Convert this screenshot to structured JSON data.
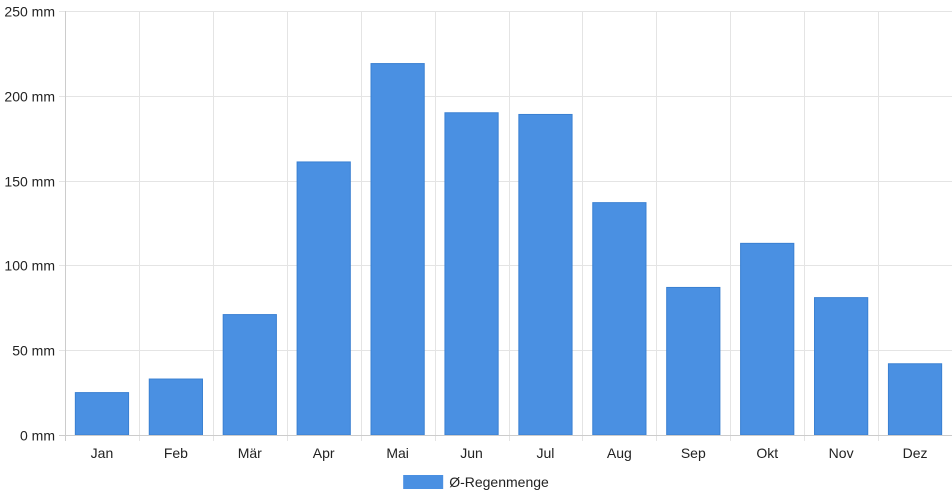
{
  "chart_data": {
    "type": "bar",
    "categories": [
      "Jan",
      "Feb",
      "Mär",
      "Apr",
      "Mai",
      "Jun",
      "Jul",
      "Aug",
      "Sep",
      "Okt",
      "Nov",
      "Dez"
    ],
    "series": [
      {
        "name": "Ø-Regenmenge",
        "values": [
          25,
          33,
          71,
          161,
          219,
          190,
          189,
          137,
          87,
          113,
          81,
          42
        ],
        "color": "#4a90e2"
      }
    ],
    "yticks": [
      "0 mm",
      "50 mm",
      "100 mm",
      "150 mm",
      "200 mm",
      "250 mm"
    ],
    "ylim": [
      0,
      250
    ],
    "ytick_step": 50,
    "unit": "mm",
    "grid": true,
    "legend": "bottom-center"
  }
}
